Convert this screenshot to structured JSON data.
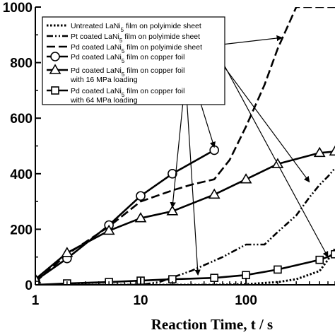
{
  "chart_data": {
    "type": "line",
    "xscale": "log",
    "xlim": [
      1,
      700
    ],
    "ylim": [
      0,
      1000
    ],
    "xlabel": "Reaction Time, t / s",
    "ylabel": "",
    "xticks": [
      1,
      10,
      100
    ],
    "yticks": [
      0,
      200,
      400,
      600,
      800,
      1000
    ],
    "grid": false,
    "legend_position": "top-left",
    "series": [
      {
        "name": "Untreated LaNi5 film on polyimide sheet",
        "line": "dotted",
        "marker": "none",
        "color": "#000000",
        "x": [
          1,
          5,
          10,
          50,
          100,
          200,
          300,
          500,
          600,
          700
        ],
        "y": [
          0,
          0,
          0,
          0,
          2,
          10,
          20,
          50,
          90,
          130
        ]
      },
      {
        "name": "Pt coated LaNi5 film on polyimide sheet",
        "line": "dashdotdot",
        "marker": "none",
        "color": "#000000",
        "x": [
          1,
          5,
          10,
          15,
          30,
          60,
          100,
          150,
          200,
          300,
          400,
          500,
          600,
          700
        ],
        "y": [
          0,
          0,
          0,
          10,
          50,
          100,
          145,
          145,
          190,
          250,
          315,
          360,
          390,
          420
        ]
      },
      {
        "name": "Pd coated LaNi5 film on polyimide sheet",
        "line": "dashed",
        "marker": "none",
        "color": "#000000",
        "x": [
          1,
          2,
          5,
          10,
          20,
          30,
          50,
          70,
          100,
          150,
          200,
          300,
          500,
          700
        ],
        "y": [
          10,
          110,
          210,
          300,
          340,
          360,
          380,
          450,
          570,
          720,
          850,
          1000,
          1000,
          1000
        ]
      },
      {
        "name": "Pd coated LaNi5 film on copper foil",
        "line": "solid",
        "marker": "circle",
        "color": "#000000",
        "x": [
          1,
          2,
          5,
          10,
          20,
          50
        ],
        "y": [
          15,
          95,
          215,
          320,
          400,
          485
        ]
      },
      {
        "name": "Pd coated LaNi5 film on copper foil with 16 MPa loading",
        "line": "solid",
        "marker": "triangle",
        "color": "#000000",
        "x": [
          1,
          2,
          5,
          10,
          20,
          50,
          100,
          200,
          500,
          700
        ],
        "y": [
          20,
          115,
          195,
          240,
          265,
          325,
          380,
          435,
          475,
          480
        ]
      },
      {
        "name": "Pd coated LaNi5 film on copper foil with 64 MPa loading",
        "line": "solid",
        "marker": "square",
        "color": "#000000",
        "x": [
          1,
          2,
          5,
          10,
          20,
          50,
          100,
          200,
          500,
          700
        ],
        "y": [
          0,
          5,
          10,
          15,
          20,
          25,
          35,
          55,
          90,
          110
        ]
      }
    ],
    "legend_items": [
      {
        "prefix": "Untreated LaNi",
        "sub": "5",
        "suffix": " film on polyimide sheet",
        "line2": ""
      },
      {
        "prefix": "Pt coated LaNi",
        "sub": "5",
        "suffix": " film on polyimide sheet",
        "line2": ""
      },
      {
        "prefix": "Pd coated LaNi",
        "sub": "5",
        "suffix": " film on polyimide sheet",
        "line2": ""
      },
      {
        "prefix": "Pd coated LaNi",
        "sub": "5",
        "suffix": " film on copper foil",
        "line2": ""
      },
      {
        "prefix": "Pd coated LaNi",
        "sub": "5",
        "suffix": " film on copper foil",
        "line2": "with 16 MPa loading"
      },
      {
        "prefix": "Pd coated LaNi",
        "sub": "5",
        "suffix": " film on copper foil",
        "line2": "with 64 MPa loading"
      }
    ],
    "annotation_arrows": [
      {
        "series": 0,
        "to": [
          600,
          90
        ]
      },
      {
        "series": 1,
        "to": [
          400,
          360
        ]
      },
      {
        "series": 2,
        "to": [
          220,
          880
        ]
      },
      {
        "series": 3,
        "to": [
          50,
          485
        ]
      },
      {
        "series": 4,
        "to": [
          20,
          268
        ]
      },
      {
        "series": 5,
        "to": [
          35,
          25
        ]
      }
    ]
  }
}
